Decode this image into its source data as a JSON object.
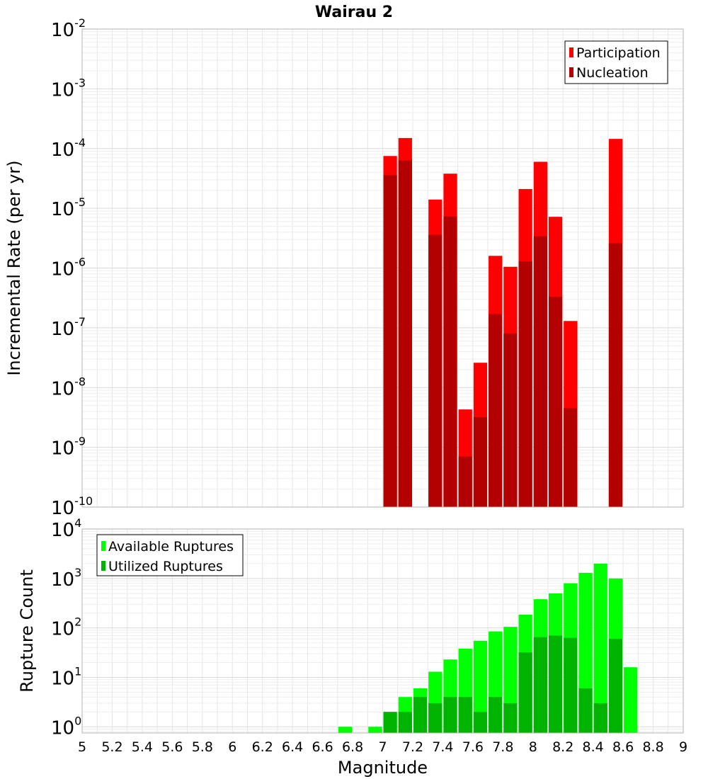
{
  "title": "Wairau 2",
  "chart_data": [
    {
      "type": "bar",
      "ylabel": "Incremental Rate (per yr)",
      "yscale": "log",
      "ylim": [
        1e-10,
        0.01
      ],
      "xlim": [
        5,
        9
      ],
      "grid": true,
      "legend_position": "top-right",
      "bar_width": 0.1,
      "x": [
        7.05,
        7.15,
        7.35,
        7.45,
        7.55,
        7.65,
        7.75,
        7.85,
        7.95,
        8.05,
        8.15,
        8.25,
        8.55
      ],
      "series": [
        {
          "name": "Participation",
          "color": "#ff0000",
          "values": [
            7.5e-05,
            0.00015,
            1.4e-05,
            3.8e-05,
            4.3e-09,
            2.6e-08,
            1.6e-06,
            1.05e-06,
            2.1e-05,
            6e-05,
            7.2e-06,
            1.3e-07,
            0.000145
          ]
        },
        {
          "name": "Nucleation",
          "color": "#b30000",
          "values": [
            3.6e-05,
            6.3e-05,
            3.6e-06,
            7.3e-06,
            7e-10,
            3.2e-09,
            1.7e-07,
            8e-08,
            1.3e-06,
            3.4e-06,
            3.3e-07,
            4.5e-09,
            2.6e-06
          ]
        }
      ],
      "y_ticks": [
        {
          "base": "10",
          "exp": "-2"
        },
        {
          "base": "10",
          "exp": "-3"
        },
        {
          "base": "10",
          "exp": "-4"
        },
        {
          "base": "10",
          "exp": "-5"
        },
        {
          "base": "10",
          "exp": "-6"
        },
        {
          "base": "10",
          "exp": "-7"
        },
        {
          "base": "10",
          "exp": "-8"
        },
        {
          "base": "10",
          "exp": "-9"
        },
        {
          "base": "10",
          "exp": "-10"
        }
      ]
    },
    {
      "type": "bar",
      "xlabel": "Magnitude",
      "ylabel": "Rupture Count",
      "yscale": "log",
      "ylim": [
        0.75,
        10000.0
      ],
      "xlim": [
        5,
        9
      ],
      "grid": true,
      "legend_position": "top-left",
      "bar_width": 0.1,
      "x": [
        6.75,
        6.95,
        7.05,
        7.15,
        7.25,
        7.35,
        7.45,
        7.55,
        7.65,
        7.75,
        7.85,
        7.95,
        8.05,
        8.15,
        8.25,
        8.35,
        8.45,
        8.55,
        8.65
      ],
      "series": [
        {
          "name": "Available Ruptures",
          "color": "#00ff00",
          "values": [
            1,
            1,
            2,
            4,
            6,
            13,
            23,
            38,
            55,
            85,
            105,
            185,
            380,
            500,
            800,
            1300,
            2000,
            1000,
            16
          ]
        },
        {
          "name": "Utilized Ruptures",
          "color": "#00b300",
          "values": [
            0,
            0,
            2,
            2,
            4,
            3,
            4,
            4,
            2,
            4,
            3,
            32,
            65,
            70,
            63,
            6,
            3,
            60,
            0
          ]
        }
      ],
      "y_ticks": [
        {
          "base": "10",
          "exp": "4"
        },
        {
          "base": "10",
          "exp": "3"
        },
        {
          "base": "10",
          "exp": "2"
        },
        {
          "base": "10",
          "exp": "1"
        },
        {
          "base": "10",
          "exp": "0"
        }
      ],
      "x_ticks": [
        "5",
        "5.2",
        "5.4",
        "5.6",
        "5.8",
        "6",
        "6.2",
        "6.4",
        "6.6",
        "6.8",
        "7",
        "7.2",
        "7.4",
        "7.6",
        "7.8",
        "8",
        "8.2",
        "8.4",
        "8.6",
        "8.8",
        "9"
      ]
    }
  ]
}
